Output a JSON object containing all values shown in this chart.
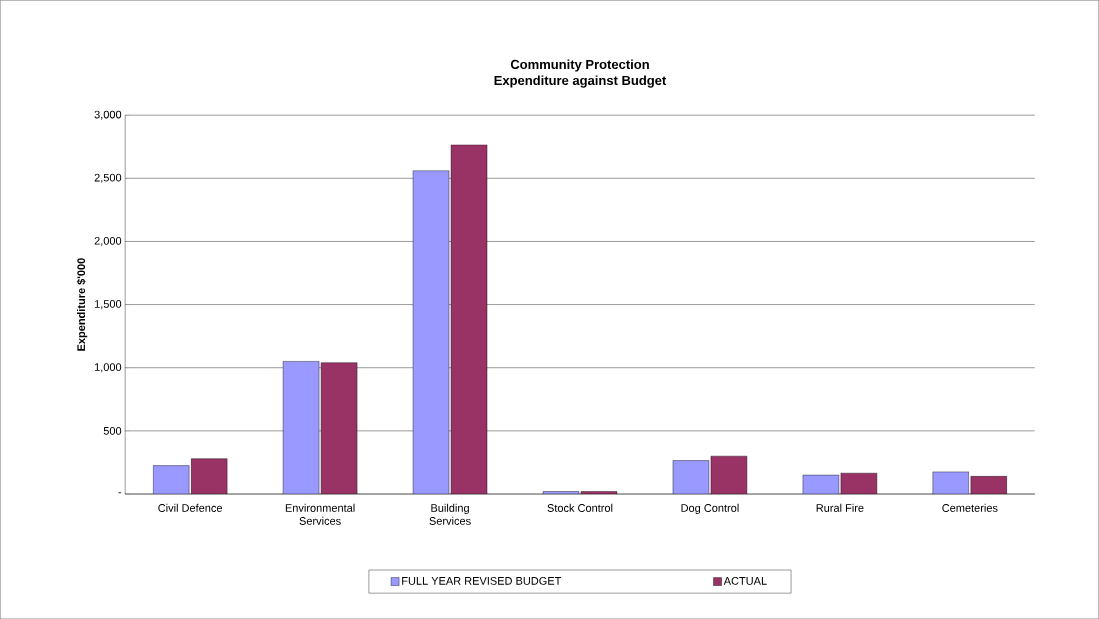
{
  "chart_data": {
    "type": "bar",
    "title": "Community Protection\nExpenditure against Budget",
    "ylabel": "Expenditure $'000",
    "categories": [
      "Civil Defence",
      "Environmental\nServices",
      "Building\nServices",
      "Stock Control",
      "Dog Control",
      "Rural Fire",
      "Cemeteries"
    ],
    "series": [
      {
        "name": "FULL YEAR REVISED BUDGET",
        "color": "#9999ff",
        "values": [
          225,
          1050,
          2560,
          20,
          265,
          150,
          175
        ]
      },
      {
        "name": "ACTUAL",
        "color": "#993366",
        "values": [
          280,
          1040,
          2765,
          20,
          300,
          165,
          140
        ]
      }
    ],
    "ylim": [
      0,
      3000
    ],
    "yticks": [
      {
        "value": 0,
        "label": "-"
      },
      {
        "value": 500,
        "label": "500"
      },
      {
        "value": 1000,
        "label": "1,000"
      },
      {
        "value": 1500,
        "label": "1,500"
      },
      {
        "value": 2000,
        "label": "2,000"
      },
      {
        "value": 2500,
        "label": "2,500"
      },
      {
        "value": 3000,
        "label": "3,000"
      }
    ],
    "grid": "y",
    "legend": "bottom"
  }
}
